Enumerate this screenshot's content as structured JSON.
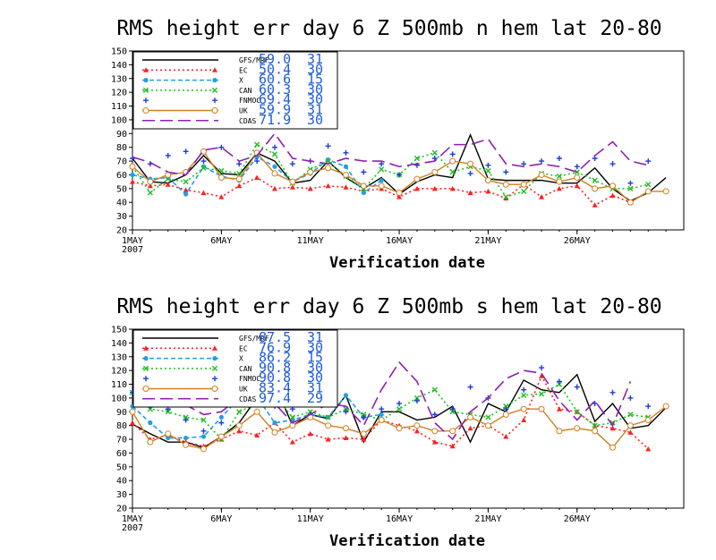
{
  "chart_data": [
    {
      "type": "line",
      "title": "RMS height err   day 6   Z 500mb   n hem   lat 20-80",
      "xlabel": "Verification date",
      "ylabel": "",
      "ylim": [
        20,
        150
      ],
      "yticks": [
        20,
        30,
        40,
        50,
        60,
        70,
        80,
        90,
        100,
        110,
        120,
        130,
        140,
        150
      ],
      "xlim": [
        1,
        31
      ],
      "xticks": [
        {
          "day": 1,
          "label": "1MAY",
          "sub": "2007"
        },
        {
          "day": 6,
          "label": "6MAY"
        },
        {
          "day": 11,
          "label": "11MAY"
        },
        {
          "day": 16,
          "label": "16MAY"
        },
        {
          "day": 21,
          "label": "21MAY"
        },
        {
          "day": 26,
          "label": "26MAY"
        }
      ],
      "legend_position": "top-left",
      "series": [
        {
          "name": "GFS/MRF",
          "mean": "59.0",
          "count": "31",
          "color": "#000000",
          "style": "solid",
          "marker": "none",
          "x": [
            1,
            2,
            3,
            4,
            5,
            6,
            7,
            8,
            9,
            10,
            11,
            12,
            13,
            14,
            15,
            16,
            17,
            18,
            19,
            20,
            21,
            22,
            23,
            24,
            25,
            26,
            27,
            28,
            29,
            30,
            31
          ],
          "values": [
            72,
            55,
            54,
            60,
            74,
            61,
            60,
            76,
            70,
            54,
            56,
            70,
            58,
            50,
            58,
            46,
            55,
            60,
            58,
            89,
            57,
            56,
            56,
            56,
            54,
            54,
            65,
            50,
            41,
            47,
            58
          ]
        },
        {
          "name": "EC",
          "mean": "50.4",
          "count": "30",
          "color": "#ff2020",
          "style": "dotted",
          "marker": "triangle",
          "x": [
            1,
            2,
            3,
            4,
            5,
            6,
            7,
            8,
            9,
            10,
            11,
            12,
            13,
            14,
            15,
            16,
            17,
            18,
            19,
            20,
            21,
            22,
            23,
            24,
            25,
            26,
            27,
            28,
            29,
            30
          ],
          "values": [
            55,
            52,
            53,
            49,
            47,
            44,
            52,
            58,
            50,
            51,
            50,
            52,
            51,
            48,
            50,
            44,
            50,
            50,
            50,
            47,
            48,
            43,
            53,
            44,
            50,
            52,
            38,
            45,
            40,
            48
          ]
        },
        {
          "name": "X",
          "mean": "60.6",
          "count": "15",
          "color": "#20a0e0",
          "style": "dashed",
          "marker": "dot",
          "x": [
            1,
            2,
            3,
            4,
            5,
            6,
            7,
            8,
            9,
            10,
            11,
            12,
            13,
            14,
            15
          ],
          "values": [
            60,
            57,
            58,
            46,
            66,
            59,
            56,
            73,
            66,
            55,
            61,
            71,
            66,
            47,
            56
          ]
        },
        {
          "name": "CAN",
          "mean": "60.3",
          "count": "30",
          "color": "#20c020",
          "style": "dotted",
          "marker": "x",
          "x": [
            1,
            2,
            3,
            4,
            5,
            6,
            7,
            8,
            9,
            10,
            11,
            12,
            13,
            14,
            15,
            16,
            17,
            18,
            19,
            20,
            21,
            22,
            23,
            24,
            25,
            26,
            27,
            28,
            29,
            30
          ],
          "values": [
            66,
            47,
            57,
            55,
            65,
            63,
            61,
            82,
            75,
            54,
            64,
            70,
            59,
            50,
            64,
            60,
            72,
            76,
            62,
            66,
            63,
            44,
            48,
            61,
            59,
            62,
            56,
            50,
            50,
            53
          ]
        },
        {
          "name": "FNMOC",
          "mean": "69.4",
          "count": "30",
          "color": "#1e3cd8",
          "style": "none",
          "marker": "plus",
          "x": [
            1,
            2,
            3,
            4,
            5,
            6,
            7,
            8,
            9,
            10,
            11,
            12,
            13,
            14,
            15,
            16,
            17,
            18,
            19,
            20,
            21,
            22,
            23,
            24,
            25,
            26,
            27,
            28,
            29,
            30
          ],
          "values": [
            72,
            68,
            74,
            77,
            70,
            80,
            68,
            70,
            80,
            68,
            70,
            81,
            76,
            62,
            68,
            60,
            67,
            72,
            75,
            61,
            67,
            62,
            68,
            70,
            72,
            66,
            72,
            68,
            54,
            70
          ]
        },
        {
          "name": "UK",
          "mean": "59.9",
          "count": "31",
          "color": "#d08020",
          "style": "solid",
          "marker": "circle",
          "x": [
            1,
            2,
            3,
            4,
            5,
            6,
            7,
            8,
            9,
            10,
            11,
            12,
            13,
            14,
            15,
            16,
            17,
            18,
            19,
            20,
            21,
            22,
            23,
            24,
            25,
            26,
            27,
            28,
            29,
            30,
            31
          ],
          "values": [
            66,
            55,
            60,
            62,
            77,
            58,
            57,
            76,
            61,
            55,
            62,
            65,
            60,
            52,
            52,
            47,
            57,
            62,
            70,
            68,
            56,
            53,
            53,
            60,
            55,
            58,
            50,
            52,
            40,
            48,
            48
          ]
        },
        {
          "name": "CDAS",
          "mean": "71.9",
          "count": "30",
          "color": "#9020b0",
          "style": "longdash",
          "marker": "none",
          "x": [
            1,
            2,
            3,
            4,
            5,
            6,
            7,
            8,
            9,
            10,
            11,
            12,
            13,
            14,
            15,
            16,
            17,
            18,
            19,
            20,
            21,
            22,
            23,
            24,
            25,
            26,
            27,
            28,
            29,
            30
          ],
          "values": [
            73,
            69,
            62,
            60,
            78,
            80,
            70,
            74,
            90,
            72,
            70,
            68,
            72,
            70,
            70,
            66,
            68,
            70,
            82,
            82,
            86,
            68,
            66,
            68,
            66,
            62,
            74,
            84,
            70,
            67
          ]
        }
      ]
    },
    {
      "type": "line",
      "title": "RMS height err   day 6   Z 500mb   s hem   lat 20-80",
      "xlabel": "Verification date",
      "ylabel": "",
      "ylim": [
        20,
        150
      ],
      "yticks": [
        20,
        30,
        40,
        50,
        60,
        70,
        80,
        90,
        100,
        110,
        120,
        130,
        140,
        150
      ],
      "xlim": [
        1,
        31
      ],
      "xticks": [
        {
          "day": 1,
          "label": "1MAY",
          "sub": "2007"
        },
        {
          "day": 6,
          "label": "6MAY"
        },
        {
          "day": 11,
          "label": "11MAY"
        },
        {
          "day": 16,
          "label": "16MAY"
        },
        {
          "day": 21,
          "label": "21MAY"
        },
        {
          "day": 26,
          "label": "26MAY"
        }
      ],
      "legend_position": "top-left",
      "series": [
        {
          "name": "GFS/MRF",
          "mean": "87.5",
          "count": "31",
          "color": "#000000",
          "style": "solid",
          "marker": "none",
          "x": [
            1,
            2,
            3,
            4,
            5,
            6,
            7,
            8,
            9,
            10,
            11,
            12,
            13,
            14,
            15,
            16,
            17,
            18,
            19,
            20,
            21,
            22,
            23,
            24,
            25,
            26,
            27,
            28,
            29,
            30,
            31
          ],
          "values": [
            81,
            74,
            68,
            68,
            64,
            72,
            82,
            100,
            110,
            80,
            88,
            85,
            102,
            68,
            90,
            90,
            84,
            86,
            94,
            68,
            96,
            90,
            113,
            106,
            104,
            117,
            83,
            96,
            78,
            80,
            93
          ]
        },
        {
          "name": "EC",
          "mean": "76.9",
          "count": "30",
          "color": "#ff2020",
          "style": "dotted",
          "marker": "triangle",
          "x": [
            1,
            2,
            3,
            4,
            5,
            6,
            7,
            8,
            9,
            10,
            11,
            12,
            13,
            14,
            15,
            16,
            17,
            18,
            19,
            20,
            21,
            22,
            23,
            24,
            25,
            26,
            27,
            28,
            29,
            30
          ],
          "values": [
            82,
            70,
            73,
            68,
            65,
            70,
            76,
            73,
            82,
            68,
            74,
            70,
            71,
            70,
            84,
            80,
            76,
            68,
            65,
            78,
            80,
            72,
            84,
            116,
            92,
            90,
            80,
            78,
            75,
            63
          ]
        },
        {
          "name": "X",
          "mean": "86.2",
          "count": "15",
          "color": "#20a0e0",
          "style": "dashed",
          "marker": "dot",
          "x": [
            1,
            2,
            3,
            4,
            5,
            6,
            7,
            8,
            9,
            10,
            11,
            12,
            13,
            14,
            15
          ],
          "values": [
            94,
            82,
            71,
            71,
            72,
            86,
            100,
            101,
            82,
            84,
            88,
            86,
            102,
            86,
            88
          ]
        },
        {
          "name": "CAN",
          "mean": "90.8",
          "count": "30",
          "color": "#20c020",
          "style": "dotted",
          "marker": "x",
          "x": [
            1,
            2,
            3,
            4,
            5,
            6,
            7,
            8,
            9,
            10,
            11,
            12,
            13,
            14,
            15,
            16,
            17,
            18,
            19,
            20,
            21,
            22,
            23,
            24,
            25,
            26,
            27,
            28,
            29,
            30
          ],
          "values": [
            104,
            92,
            90,
            86,
            84,
            70,
            90,
            96,
            102,
            86,
            90,
            86,
            92,
            88,
            84,
            92,
            100,
            106,
            90,
            88,
            86,
            94,
            102,
            103,
            110,
            90,
            80,
            82,
            88,
            86
          ]
        },
        {
          "name": "FNMOC",
          "mean": "90.8",
          "count": "30",
          "color": "#1e3cd8",
          "style": "none",
          "marker": "plus",
          "x": [
            1,
            2,
            3,
            4,
            5,
            6,
            7,
            8,
            9,
            10,
            11,
            12,
            13,
            14,
            15,
            16,
            17,
            18,
            19,
            20,
            21,
            22,
            23,
            24,
            25,
            26,
            27,
            28,
            29,
            30
          ],
          "values": [
            104,
            94,
            92,
            84,
            76,
            82,
            102,
            96,
            94,
            92,
            88,
            98,
            90,
            86,
            92,
            96,
            98,
            88,
            92,
            108,
            100,
            92,
            106,
            122,
            112,
            108,
            96,
            104,
            100,
            94
          ]
        },
        {
          "name": "UK",
          "mean": "83.4",
          "count": "31",
          "color": "#d08020",
          "style": "solid",
          "marker": "circle",
          "x": [
            1,
            2,
            3,
            4,
            5,
            6,
            7,
            8,
            9,
            10,
            11,
            12,
            13,
            14,
            15,
            16,
            17,
            18,
            19,
            20,
            21,
            22,
            23,
            24,
            25,
            26,
            27,
            28,
            29,
            30,
            31
          ],
          "values": [
            90,
            68,
            74,
            66,
            63,
            72,
            80,
            90,
            75,
            80,
            86,
            80,
            78,
            74,
            84,
            78,
            80,
            76,
            76,
            86,
            80,
            88,
            92,
            92,
            76,
            78,
            76,
            64,
            80,
            84,
            94
          ]
        },
        {
          "name": "CDAS",
          "mean": "97.4",
          "count": "29",
          "color": "#9020b0",
          "style": "longdash",
          "marker": "none",
          "x": [
            1,
            2,
            3,
            4,
            5,
            6,
            7,
            8,
            9,
            10,
            11,
            12,
            13,
            14,
            15,
            16,
            17,
            18,
            19,
            20,
            21,
            22,
            23,
            24,
            25,
            26,
            27,
            28,
            29
          ],
          "values": [
            100,
            104,
            100,
            95,
            88,
            90,
            100,
            104,
            96,
            82,
            88,
            96,
            94,
            80,
            106,
            126,
            112,
            82,
            70,
            90,
            100,
            114,
            120,
            118,
            98,
            84,
            98,
            80,
            112
          ]
        }
      ]
    }
  ]
}
